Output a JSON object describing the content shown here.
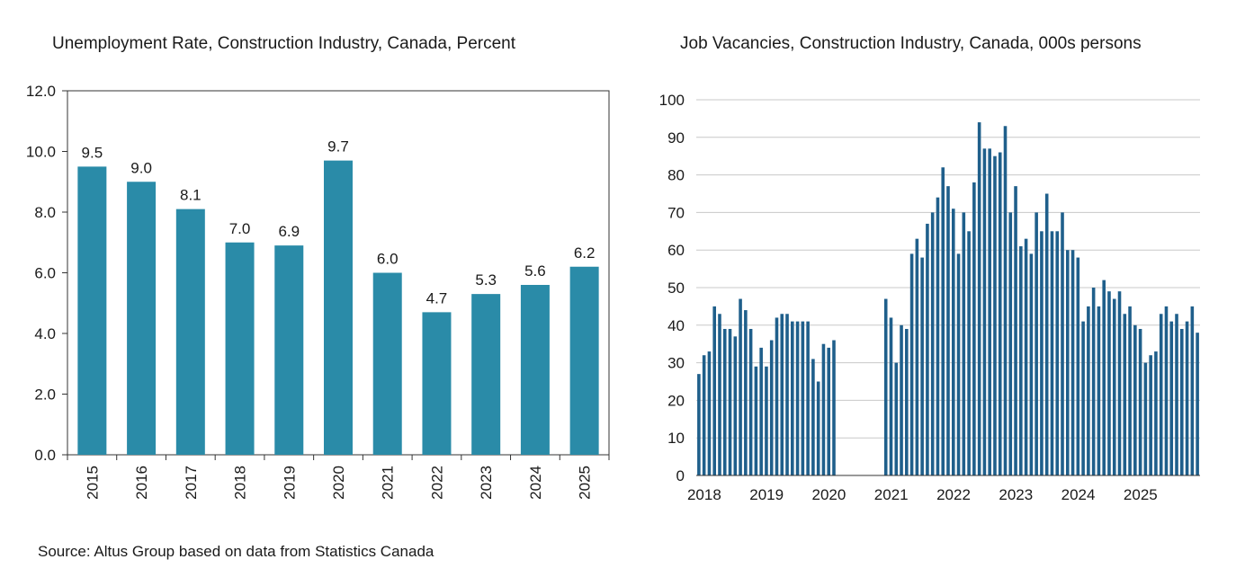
{
  "source": "Source:  Altus Group based on data from Statistics Canada",
  "colors": {
    "left_bar": "#2a8ba8",
    "right_bar": "#1f5f8b",
    "grid": "#c8c8c8",
    "axis": "#333333"
  },
  "chart_data": [
    {
      "type": "bar",
      "title": "Unemployment Rate, Construction Industry, Canada, Percent",
      "categories": [
        "2015",
        "2016",
        "2017",
        "2018",
        "2019",
        "2020",
        "2021",
        "2022",
        "2023",
        "2024",
        "2025"
      ],
      "values": [
        9.5,
        9.0,
        8.1,
        7.0,
        6.9,
        9.7,
        6.0,
        4.7,
        5.3,
        5.6,
        6.2
      ],
      "data_labels": [
        "9.5",
        "9.0",
        "8.1",
        "7.0",
        "6.9",
        "9.7",
        "6.0",
        "4.7",
        "5.3",
        "5.6",
        "6.2"
      ],
      "ylim": [
        0,
        12
      ],
      "yticks": [
        "0.0",
        "2.0",
        "4.0",
        "6.0",
        "8.0",
        "10.0",
        "12.0"
      ],
      "xlabel": "",
      "ylabel": "",
      "grid": false
    },
    {
      "type": "bar",
      "title": "Job Vacancies, Construction Industry, Canada, 000s persons",
      "start": "2018-01",
      "frequency": "monthly",
      "values": [
        27,
        32,
        33,
        45,
        43,
        39,
        39,
        37,
        47,
        44,
        39,
        29,
        34,
        29,
        36,
        42,
        43,
        43,
        41,
        41,
        41,
        41,
        31,
        25,
        35,
        34,
        36,
        null,
        null,
        null,
        null,
        null,
        null,
        null,
        null,
        null,
        47,
        42,
        30,
        40,
        39,
        59,
        63,
        58,
        67,
        70,
        74,
        82,
        77,
        71,
        59,
        70,
        65,
        78,
        94,
        87,
        87,
        85,
        86,
        93,
        70,
        77,
        61,
        63,
        59,
        70,
        65,
        75,
        65,
        65,
        70,
        60,
        60,
        58,
        41,
        45,
        50,
        45,
        52,
        49,
        47,
        49,
        43,
        45,
        40,
        39,
        30,
        32,
        33,
        43,
        45,
        41,
        43,
        39,
        41,
        45,
        38
      ],
      "xticks": [
        "2018",
        "2019",
        "2020",
        "2021",
        "2022",
        "2023",
        "2024",
        "2025"
      ],
      "ylim": [
        0,
        100
      ],
      "yticks": [
        "0",
        "10",
        "20",
        "30",
        "40",
        "50",
        "60",
        "70",
        "80",
        "90",
        "100"
      ],
      "xlabel": "",
      "ylabel": "",
      "grid": true
    }
  ]
}
